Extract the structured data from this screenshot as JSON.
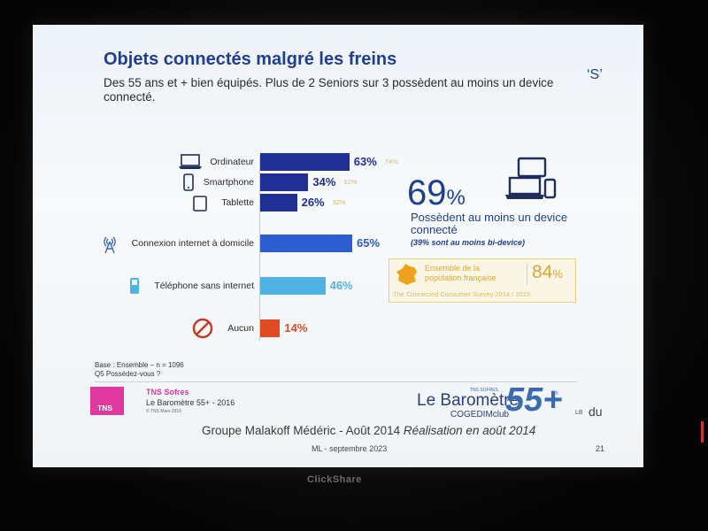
{
  "slide": {
    "title": "Objets connectés malgré les freins",
    "corner_mark": "‘S’",
    "subtitle": "Des 55 ans et + bien équipés. Plus de 2 Seniors sur 3 possèdent au moins un device connecté."
  },
  "chart_data": {
    "type": "bar",
    "orientation": "horizontal",
    "categories": [
      "Ordinateur",
      "Smartphone",
      "Tablette",
      "Connexion internet à domicile",
      "Téléphone sans internet",
      "Aucun"
    ],
    "values": [
      63,
      34,
      26,
      65,
      46,
      14
    ],
    "value_labels": [
      "63%",
      "34%",
      "26%",
      "65%",
      "46%",
      "14%"
    ],
    "comparison_labels": [
      "74%",
      "62%",
      "32%",
      "",
      "",
      ""
    ],
    "bar_colors": [
      "#1f2f96",
      "#1f2f96",
      "#1f2f96",
      "#2d5ed0",
      "#4fb2e2",
      "#e14a23"
    ],
    "label_colors": [
      "#1f2f96",
      "#1f2f96",
      "#1f2f96",
      "#2d5ed0",
      "#4fb2e2",
      "#e14a23"
    ],
    "icons": [
      "laptop-icon",
      "smartphone-icon",
      "tablet-icon",
      "wifi-antenna-icon",
      "mobile-phone-icon",
      "prohibited-icon"
    ],
    "xlim": [
      0,
      100
    ]
  },
  "highlight": {
    "big_number": "69",
    "big_unit": "%",
    "caption": "Possèdent au moins un device connecté",
    "note": "(39% sont au moins bi-device)"
  },
  "france_box": {
    "label": "Ensemble de la population française",
    "value": "84",
    "unit": "%",
    "source": "The Connected Consumer Survey 2014 / 2015"
  },
  "footer": {
    "base_line1": "Base : Ensemble – n = 1096",
    "base_line2": "Q5 Possédez-vous ?",
    "tns_logo": "TNS",
    "tns_sofres": "TNS Sofres",
    "barometre": "Le Baromètre 55+ - 2016",
    "copyright": "© TNS Mars 2016",
    "lb_top": "TNS SOFRES",
    "lb_main": "Le Baromètre",
    "lb_sub": "COGEDIMclub",
    "lb_55": "55+",
    "lb_reg": "®",
    "stray1": "LB",
    "stray2": "du",
    "malakoff": "Groupe Malakoff Médéric  - Août 2014",
    "malakoff_italic": " Réalisation en août 2014",
    "ml": "ML - septembre 2023",
    "page": "21"
  },
  "projector": {
    "brand": "ClickShare"
  }
}
